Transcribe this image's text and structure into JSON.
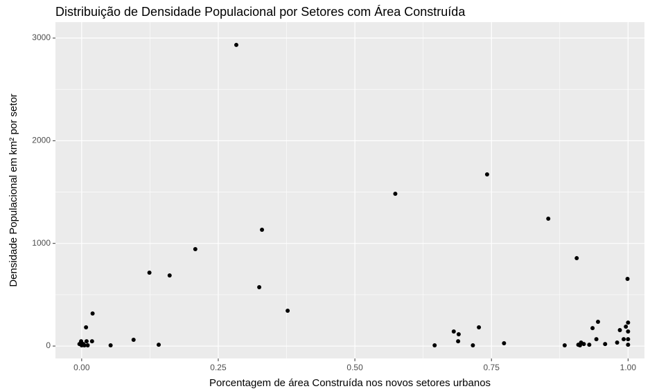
{
  "chart_data": {
    "type": "scatter",
    "title": "Distribuição de Densidade Populacional por Setores com Área Construída",
    "x_label": "Porcentagem de área Construída nos novos setores urbanos",
    "y_label": "Densidade Populacional em km² por setor",
    "color": "#000000",
    "background": "#ebebeb",
    "grid": true,
    "xlim": [
      -0.048,
      1.03
    ],
    "ylim": [
      -121,
      3155
    ],
    "xticks": [
      {
        "value": 0,
        "label": "0.00"
      },
      {
        "value": 0.25,
        "label": "0.25"
      },
      {
        "value": 0.5,
        "label": "0.50"
      },
      {
        "value": 0.75,
        "label": "0.75"
      },
      {
        "value": 1,
        "label": "1.00"
      }
    ],
    "yticks": [
      0,
      1000,
      2000,
      3000
    ],
    "x_minor_breaks": [
      0.125,
      0.375,
      0.625,
      0.875
    ],
    "y_minor_breaks": [
      500,
      1500,
      2500
    ],
    "x": [
      0.283,
      0.742,
      0.574,
      0.854,
      0.33,
      0.208,
      0.906,
      0.124,
      0.161,
      0.325,
      0.999,
      0.377,
      0.02,
      0.008,
      0.945,
      1.0,
      0.935,
      1.0,
      0.727,
      0.681,
      0.69,
      0.985,
      0.996,
      0.095,
      0.689,
      0.942,
      0.992,
      1.0,
      -0.001,
      0.003,
      0.009,
      0.019,
      0.0,
      0.005,
      0.011,
      -0.004,
      0.053,
      0.141,
      0.646,
      0.716,
      0.773,
      0.884,
      0.909,
      0.914,
      0.919,
      0.929,
      0.958,
      0.98,
      1.0,
      0.912
    ],
    "values": [
      2933,
      1672,
      1483,
      1241,
      1133,
      944,
      856,
      715,
      688,
      573,
      654,
      344,
      317,
      182,
      236,
      229,
      175,
      142,
      182,
      142,
      115,
      155,
      189,
      61,
      47,
      67,
      67,
      67,
      47,
      20,
      47,
      47,
      7,
      7,
      7,
      20,
      7,
      13,
      7,
      7,
      27,
      7,
      13,
      34,
      20,
      13,
      20,
      34,
      13,
      7
    ]
  }
}
